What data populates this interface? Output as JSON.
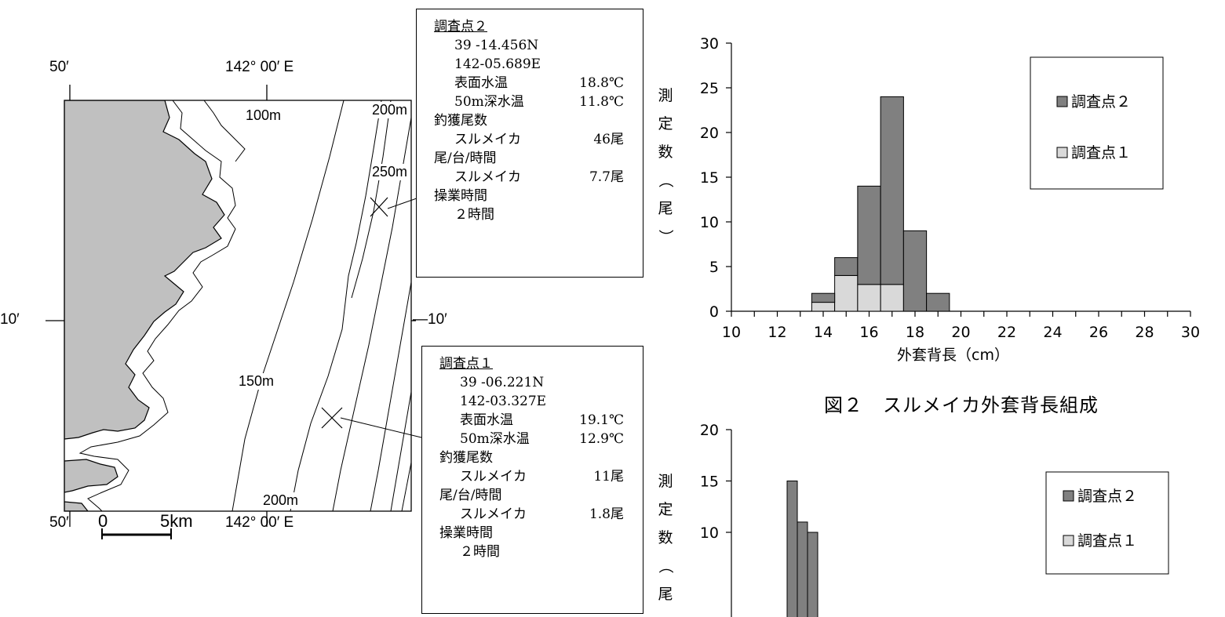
{
  "map": {
    "top_lon_left": "50′",
    "top_lon_right": "142° 00′ E",
    "bottom_lon_left": "50′",
    "bottom_lon_right": "142° 00′ E",
    "lat_left": "10′",
    "lat_right": "—10′",
    "depth_100": "100m",
    "depth_200_top": "200m",
    "depth_250": "250m",
    "depth_150": "150m",
    "depth_200_bottom": "200m",
    "scale_zero": "0",
    "scale_km": "5km",
    "land_color": "#c0c0c0"
  },
  "station2": {
    "title": "調査点２",
    "lat": "39 -14.456N",
    "lon": "142-05.689E",
    "sst_label": "表面水温",
    "sst_value": "18.8℃",
    "t50_label": "50m深水温",
    "t50_value": "11.8℃",
    "catch_label": "釣獲尾数",
    "species": "スルメイカ",
    "catch_value": "46尾",
    "cpue_label": "尾/台/時間",
    "cpue_value": "7.7尾",
    "ophours_label": "操業時間",
    "ophours_value": "２時間"
  },
  "station1": {
    "title": "調査点１",
    "lat": "39 -06.221N",
    "lon": "142-03.327E",
    "sst_label": "表面水温",
    "sst_value": "19.1℃",
    "t50_label": "50m深水温",
    "t50_value": "12.9℃",
    "catch_label": "釣獲尾数",
    "species": "スルメイカ",
    "catch_value": "11尾",
    "cpue_label": "尾/台/時間",
    "cpue_value": "1.8尾",
    "ophours_label": "操業時間",
    "ophours_value": "２時間"
  },
  "figure_caption": "図２　スルメイカ外套背長組成",
  "chart_data": [
    {
      "type": "bar",
      "stacked": true,
      "ylabel": "測定数（尾）",
      "xlabel": "外套背長（cm）",
      "xlim": [
        10,
        30
      ],
      "ylim": [
        0,
        30
      ],
      "xticks": [
        10,
        12,
        14,
        16,
        18,
        20,
        22,
        24,
        26,
        28,
        30
      ],
      "yticks": [
        0,
        5,
        10,
        15,
        20,
        25,
        30
      ],
      "categories": [
        14,
        15,
        16,
        17,
        18,
        19
      ],
      "series": [
        {
          "name": "調査点１",
          "color": "#d9d9d9",
          "values": [
            1,
            4,
            3,
            3,
            0,
            0
          ]
        },
        {
          "name": "調査点２",
          "color": "#808080",
          "values": [
            1,
            2,
            11,
            21,
            9,
            2
          ]
        }
      ],
      "legend": [
        "調査点２",
        "調査点１"
      ],
      "legend_position": "right"
    },
    {
      "type": "bar",
      "stacked": true,
      "ylabel": "測定数（尾",
      "ylim_visible": [
        5,
        20
      ],
      "yticks": [
        10,
        15,
        20
      ],
      "categories": [
        1,
        2,
        3
      ],
      "series": [
        {
          "name": "調査点２",
          "color": "#808080",
          "values": [
            15,
            11,
            10
          ]
        }
      ],
      "legend": [
        "調査点２",
        "調査点１"
      ],
      "legend_position": "right"
    }
  ]
}
